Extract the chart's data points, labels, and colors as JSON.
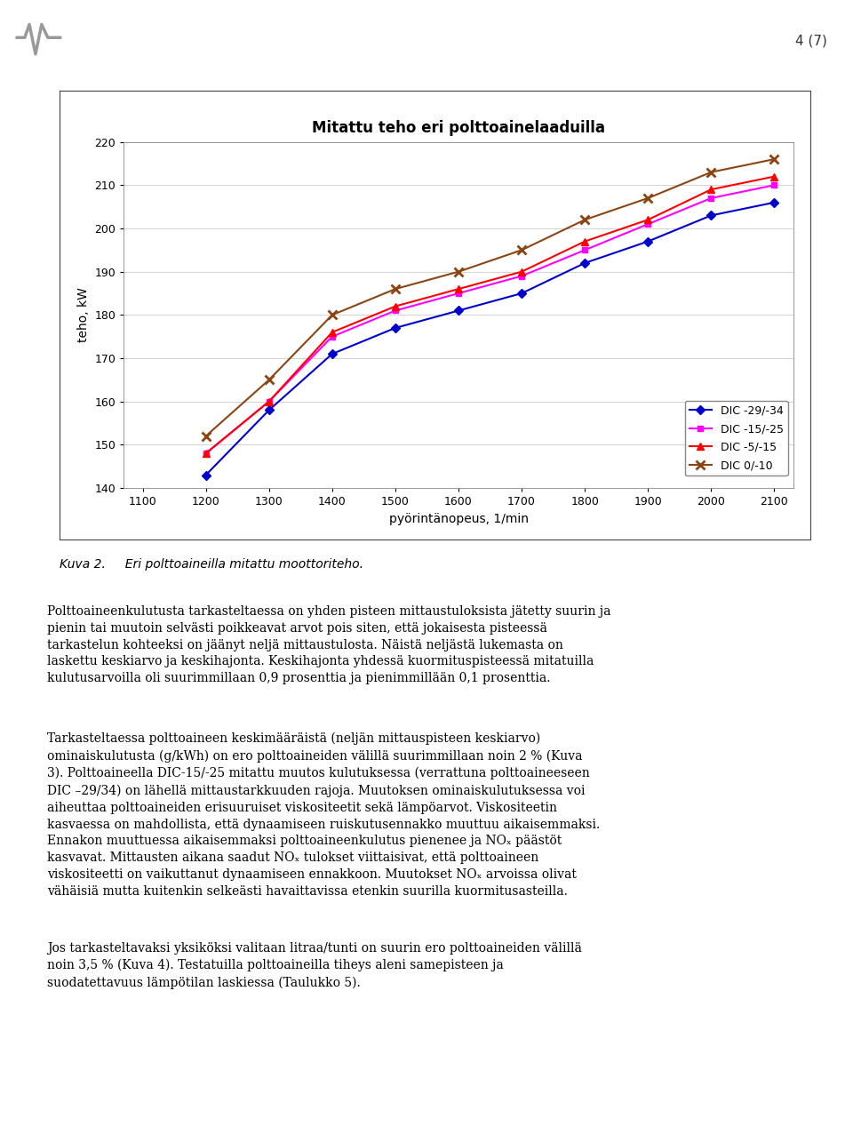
{
  "title": "Mitattu teho eri polttoainelaaduilla",
  "xlabel": "pyörintänopeus, 1/min",
  "ylabel": "teho, kW",
  "xlim": [
    1100,
    2100
  ],
  "ylim": [
    140,
    220
  ],
  "xticks": [
    1100,
    1200,
    1300,
    1400,
    1500,
    1600,
    1700,
    1800,
    1900,
    2000,
    2100
  ],
  "yticks": [
    140,
    150,
    160,
    170,
    180,
    190,
    200,
    210,
    220
  ],
  "series": [
    {
      "label": "DIC -29/-34",
      "color": "#0000CD",
      "marker": "D",
      "markersize": 5,
      "x": [
        1200,
        1300,
        1400,
        1500,
        1600,
        1700,
        1800,
        1900,
        2000,
        2100
      ],
      "y": [
        143,
        158,
        171,
        177,
        181,
        185,
        192,
        197,
        203,
        206
      ]
    },
    {
      "label": "DIC -15/-25",
      "color": "#FF00FF",
      "marker": "s",
      "markersize": 5,
      "x": [
        1200,
        1300,
        1400,
        1500,
        1600,
        1700,
        1800,
        1900,
        2000,
        2100
      ],
      "y": [
        148,
        160,
        175,
        181,
        185,
        189,
        195,
        201,
        207,
        210
      ]
    },
    {
      "label": "DIC -5/-15",
      "color": "#FF0000",
      "marker": "^",
      "markersize": 6,
      "x": [
        1200,
        1300,
        1400,
        1500,
        1600,
        1700,
        1800,
        1900,
        2000,
        2100
      ],
      "y": [
        148,
        160,
        176,
        182,
        186,
        190,
        197,
        202,
        209,
        212
      ]
    },
    {
      "label": "DIC 0/-10",
      "color": "#8B4513",
      "marker": "x",
      "markersize": 7,
      "x": [
        1200,
        1300,
        1400,
        1500,
        1600,
        1700,
        1800,
        1900,
        2000,
        2100
      ],
      "y": [
        152,
        165,
        180,
        186,
        190,
        195,
        202,
        207,
        213,
        216
      ]
    }
  ],
  "page_bg_color": "#ffffff",
  "title_fontsize": 12,
  "axis_fontsize": 10,
  "tick_fontsize": 9,
  "legend_fontsize": 9,
  "page_number": "4 (7)",
  "caption": "Kuva 2.     Eri polttoaineilla mitattu moottoriteho.",
  "para1": "Polttoaineenkulutusta tarkasteltaessa on yhden pisteen mittaustuloksista jätetty suurin ja pienin tai muutoin selvästi poikkeavat arvot pois siten, että jokaisesta pisteessä tarkastelun kohteeksi on jäänyt neljä mittaustulosta. Näistä neljästä lukemasta on laskettu keskiarvo ja keskihajonta. Keskihajonta yhdessä kuormituspisteessä mitatuilla kulutusarvoilla oli suurimmillaan 0,9 prosenttia ja pienimmillään 0,1 prosenttia.",
  "para2": "Tarkasteltaessa polttoaineen keskimääräistä (neljän mittauspisteen keskiarvo) ominaiskulutusta (g/kWh) on ero polttoaineiden välillä suurimmillaan noin 2 % (Kuva 3). Polttoaineella DIC-15/-25 mitattu muutos kulutuksessa (verrattuna polttoaineeseen DIC –29/34) on lähellä mittaustarkkuuden rajoja. Muutoksen ominaiskulutuksessa voi aiheuttaa polttoaineiden erisuuruiset viskositeetit sekä lämpöarvot. Viskositeetin kasvaessa on mahdollista, että dynaamiseen ruiskutusennakko muuttuu aikaisemmaksi. Ennakon muuttuessa aikaisemmaksi polttoaineenkulutus pienenee ja NOx päästöt kasvavat. Mittausten aikana saadut NOx tulokset viittaisivat, että polttoaineen viskositeetti on vaikuttanut dynaamiseen ennakkoon. Muutokset NOx arvoissa olivat vähäisiä mutta kuitenkin selkeästi havaittavissa etenkin suurilla kuormitusasteilla.",
  "para3": "Jos tarkasteltavaksi yksiköksi valitaan litraa/tunti on suurin ero polttoaineiden välillä noin 3,5 % (Kuva 4). Testatuilla polttoaineilla tiheys aleni samepisteen ja suodatettavuus lämpötilan laskiessa (Taulukko 5)."
}
